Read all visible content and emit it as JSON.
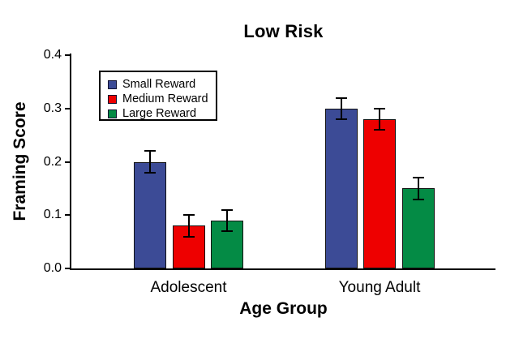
{
  "chart_data": {
    "type": "bar",
    "title": "Low Risk",
    "xlabel": "Age Group",
    "ylabel": "Framing Score",
    "categories": [
      "Adolescent",
      "Young Adult"
    ],
    "series": [
      {
        "name": "Small Reward",
        "color": "#3C4B96",
        "values": [
          0.2,
          0.3
        ],
        "errors": [
          0.02,
          0.02
        ]
      },
      {
        "name": "Medium Reward",
        "color": "#EE0000",
        "values": [
          0.08,
          0.28
        ],
        "errors": [
          0.02,
          0.02
        ]
      },
      {
        "name": "Large Reward",
        "color": "#048B45",
        "values": [
          0.09,
          0.15
        ],
        "errors": [
          0.02,
          0.02
        ]
      }
    ],
    "ylim": [
      0,
      0.4
    ],
    "yticks": [
      0,
      0.1,
      0.2,
      0.3,
      0.4
    ],
    "ytick_labels": [
      "0.0",
      "0.1",
      "0.2",
      "0.3",
      "0.4"
    ],
    "legend_position": "upper-left-inside",
    "legend_entries": [
      "Small Reward",
      "Medium Reward",
      "Large Reward"
    ],
    "grid": false,
    "error_bars": true,
    "axis_color": "#000000",
    "background_color": "#ffffff"
  }
}
